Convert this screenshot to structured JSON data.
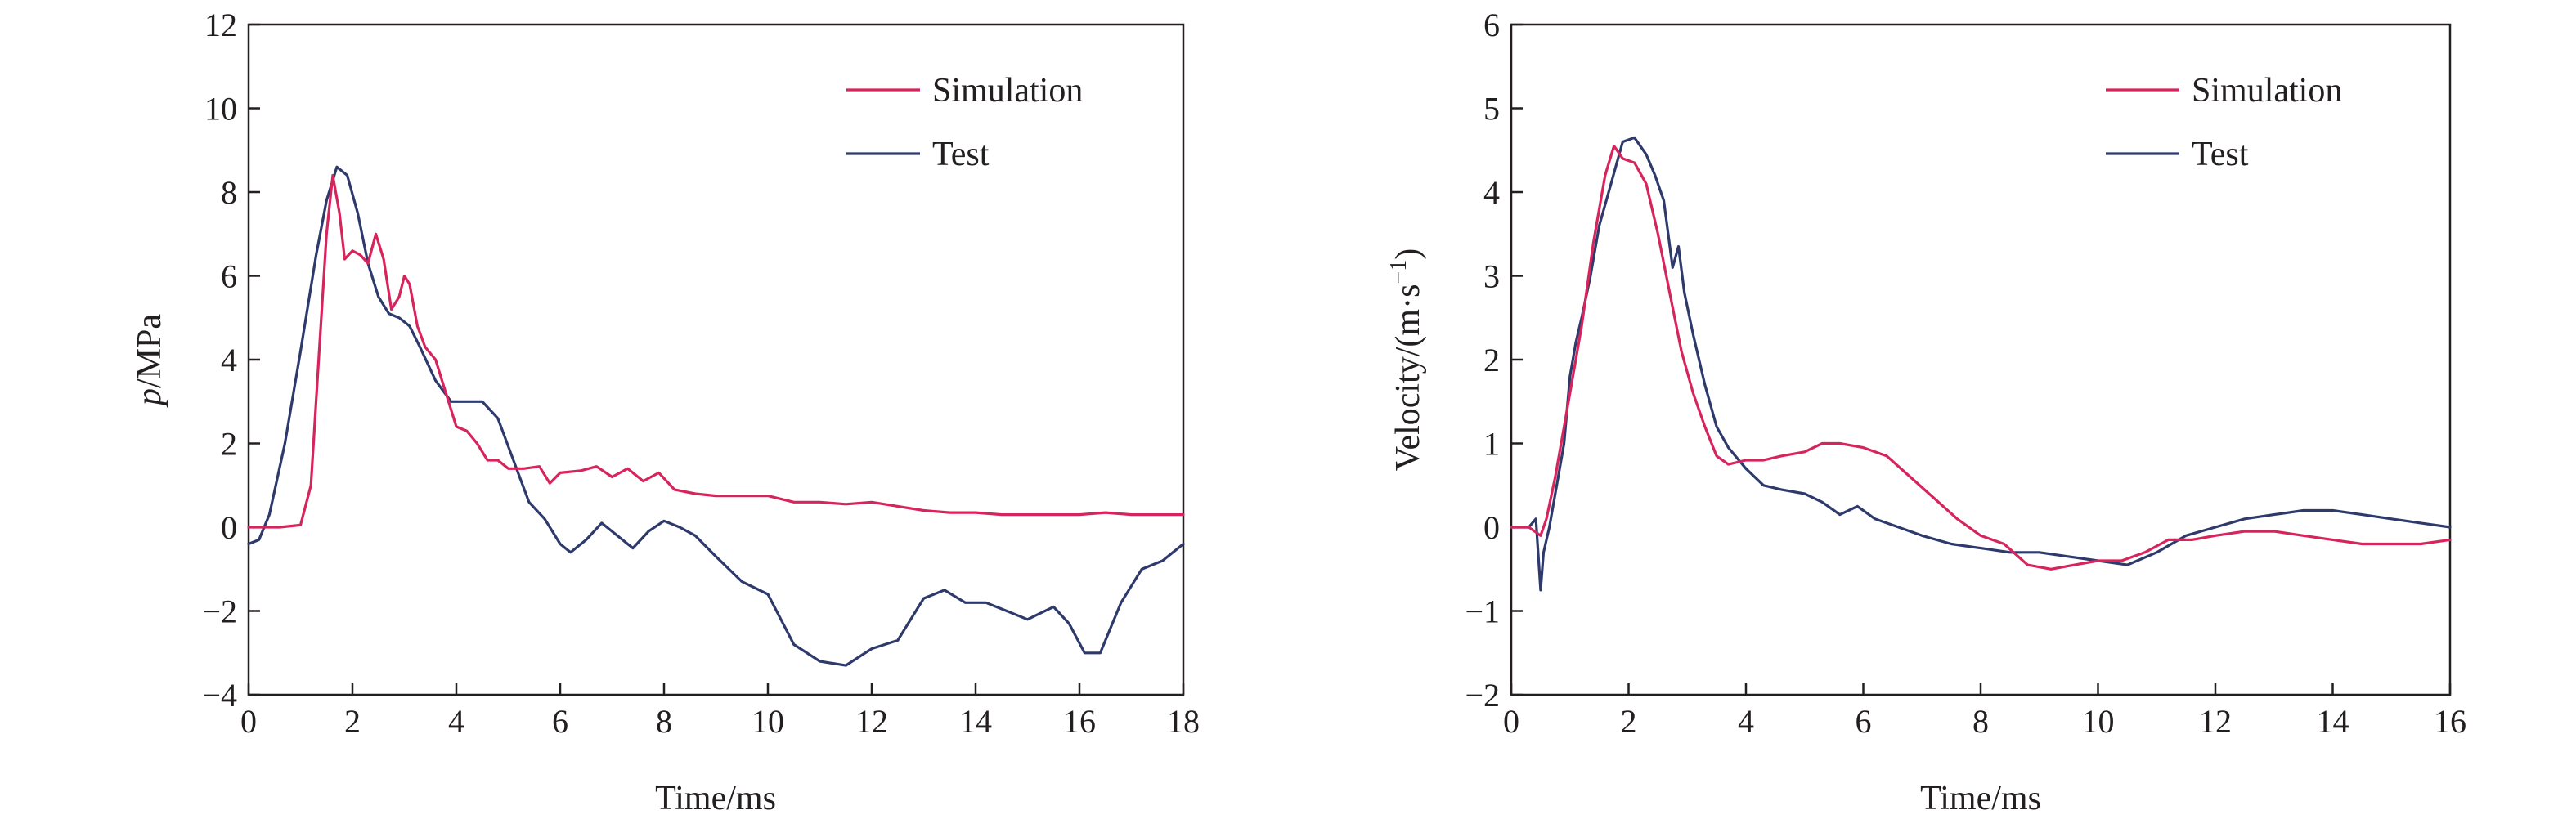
{
  "chart_data": [
    {
      "type": "line",
      "xlabel": "Time/ms",
      "ylabel_italic": "p",
      "ylabel_rest": "/MPa",
      "xlim": [
        0,
        18
      ],
      "ylim": [
        -4,
        12
      ],
      "xticks": [
        0,
        2,
        4,
        6,
        8,
        10,
        12,
        14,
        16,
        18
      ],
      "yticks": [
        -4,
        -2,
        0,
        2,
        4,
        6,
        8,
        10,
        12
      ],
      "xtick_labels": [
        "0",
        "2",
        "4",
        "6",
        "8",
        "10",
        "12",
        "14",
        "16",
        "18"
      ],
      "ytick_labels": [
        "−4",
        "−2",
        "0",
        "2",
        "4",
        "6",
        "8",
        "10",
        "12"
      ],
      "legend_position": "top-right",
      "series": [
        {
          "name": "Simulation",
          "color": "#d6245c",
          "points": [
            [
              0,
              0
            ],
            [
              0.6,
              0
            ],
            [
              1.0,
              0.05
            ],
            [
              1.2,
              1.0
            ],
            [
              1.35,
              4.0
            ],
            [
              1.5,
              7.0
            ],
            [
              1.62,
              8.4
            ],
            [
              1.75,
              7.5
            ],
            [
              1.85,
              6.4
            ],
            [
              2.0,
              6.6
            ],
            [
              2.15,
              6.5
            ],
            [
              2.3,
              6.3
            ],
            [
              2.45,
              7.0
            ],
            [
              2.6,
              6.4
            ],
            [
              2.75,
              5.2
            ],
            [
              2.9,
              5.5
            ],
            [
              3.0,
              6.0
            ],
            [
              3.1,
              5.8
            ],
            [
              3.25,
              4.8
            ],
            [
              3.4,
              4.3
            ],
            [
              3.6,
              4.0
            ],
            [
              3.8,
              3.2
            ],
            [
              4.0,
              2.4
            ],
            [
              4.2,
              2.3
            ],
            [
              4.4,
              2.0
            ],
            [
              4.6,
              1.6
            ],
            [
              4.8,
              1.6
            ],
            [
              5.0,
              1.4
            ],
            [
              5.3,
              1.4
            ],
            [
              5.6,
              1.45
            ],
            [
              5.8,
              1.05
            ],
            [
              6.0,
              1.3
            ],
            [
              6.4,
              1.35
            ],
            [
              6.7,
              1.45
            ],
            [
              7.0,
              1.2
            ],
            [
              7.3,
              1.4
            ],
            [
              7.6,
              1.1
            ],
            [
              7.9,
              1.3
            ],
            [
              8.2,
              0.9
            ],
            [
              8.6,
              0.8
            ],
            [
              9.0,
              0.75
            ],
            [
              9.5,
              0.75
            ],
            [
              10.0,
              0.75
            ],
            [
              10.5,
              0.6
            ],
            [
              11.0,
              0.6
            ],
            [
              11.5,
              0.55
            ],
            [
              12.0,
              0.6
            ],
            [
              12.5,
              0.5
            ],
            [
              13.0,
              0.4
            ],
            [
              13.5,
              0.35
            ],
            [
              14.0,
              0.35
            ],
            [
              14.5,
              0.3
            ],
            [
              15.0,
              0.3
            ],
            [
              15.5,
              0.3
            ],
            [
              16.0,
              0.3
            ],
            [
              16.5,
              0.35
            ],
            [
              17.0,
              0.3
            ],
            [
              17.5,
              0.3
            ],
            [
              18.0,
              0.3
            ]
          ]
        },
        {
          "name": "Test",
          "color": "#2e3a6b",
          "points": [
            [
              0,
              -0.4
            ],
            [
              0.2,
              -0.3
            ],
            [
              0.4,
              0.3
            ],
            [
              0.7,
              2.0
            ],
            [
              1.0,
              4.2
            ],
            [
              1.3,
              6.5
            ],
            [
              1.5,
              7.8
            ],
            [
              1.7,
              8.6
            ],
            [
              1.9,
              8.4
            ],
            [
              2.1,
              7.5
            ],
            [
              2.3,
              6.3
            ],
            [
              2.5,
              5.5
            ],
            [
              2.7,
              5.1
            ],
            [
              2.9,
              5.0
            ],
            [
              3.1,
              4.8
            ],
            [
              3.3,
              4.3
            ],
            [
              3.6,
              3.5
            ],
            [
              3.9,
              3.0
            ],
            [
              4.2,
              3.0
            ],
            [
              4.5,
              3.0
            ],
            [
              4.8,
              2.6
            ],
            [
              5.1,
              1.6
            ],
            [
              5.4,
              0.6
            ],
            [
              5.7,
              0.2
            ],
            [
              6.0,
              -0.4
            ],
            [
              6.2,
              -0.6
            ],
            [
              6.5,
              -0.3
            ],
            [
              6.8,
              0.1
            ],
            [
              7.1,
              -0.2
            ],
            [
              7.4,
              -0.5
            ],
            [
              7.7,
              -0.1
            ],
            [
              8.0,
              0.15
            ],
            [
              8.3,
              0.0
            ],
            [
              8.6,
              -0.2
            ],
            [
              9.0,
              -0.7
            ],
            [
              9.5,
              -1.3
            ],
            [
              10.0,
              -1.6
            ],
            [
              10.5,
              -2.8
            ],
            [
              11.0,
              -3.2
            ],
            [
              11.5,
              -3.3
            ],
            [
              12.0,
              -2.9
            ],
            [
              12.5,
              -2.7
            ],
            [
              13.0,
              -1.7
            ],
            [
              13.4,
              -1.5
            ],
            [
              13.8,
              -1.8
            ],
            [
              14.2,
              -1.8
            ],
            [
              14.6,
              -2.0
            ],
            [
              15.0,
              -2.2
            ],
            [
              15.5,
              -1.9
            ],
            [
              15.8,
              -2.3
            ],
            [
              16.1,
              -3.0
            ],
            [
              16.4,
              -3.0
            ],
            [
              16.8,
              -1.8
            ],
            [
              17.2,
              -1.0
            ],
            [
              17.6,
              -0.8
            ],
            [
              18.0,
              -0.4
            ]
          ]
        }
      ]
    },
    {
      "type": "line",
      "xlabel": "Time/ms",
      "ylabel_main": "Velocity/(m·s",
      "ylabel_sup": "−1",
      "ylabel_close": ")",
      "xlim": [
        0,
        16
      ],
      "ylim": [
        -2,
        6
      ],
      "xticks": [
        0,
        2,
        4,
        6,
        8,
        10,
        12,
        14,
        16
      ],
      "yticks": [
        -2,
        -1,
        0,
        1,
        2,
        3,
        4,
        5,
        6
      ],
      "xtick_labels": [
        "0",
        "2",
        "4",
        "6",
        "8",
        "10",
        "12",
        "14",
        "16"
      ],
      "ytick_labels": [
        "−2",
        "−1",
        "0",
        "1",
        "2",
        "3",
        "4",
        "5",
        "6"
      ],
      "legend_position": "top-right",
      "series": [
        {
          "name": "Simulation",
          "color": "#d6245c",
          "points": [
            [
              0,
              0
            ],
            [
              0.3,
              0
            ],
            [
              0.5,
              -0.1
            ],
            [
              0.6,
              0.1
            ],
            [
              0.75,
              0.6
            ],
            [
              0.9,
              1.2
            ],
            [
              1.0,
              1.6
            ],
            [
              1.2,
              2.4
            ],
            [
              1.4,
              3.4
            ],
            [
              1.6,
              4.2
            ],
            [
              1.75,
              4.55
            ],
            [
              1.9,
              4.4
            ],
            [
              2.1,
              4.35
            ],
            [
              2.3,
              4.1
            ],
            [
              2.5,
              3.5
            ],
            [
              2.7,
              2.8
            ],
            [
              2.9,
              2.1
            ],
            [
              3.1,
              1.6
            ],
            [
              3.3,
              1.2
            ],
            [
              3.5,
              0.85
            ],
            [
              3.7,
              0.75
            ],
            [
              4.0,
              0.8
            ],
            [
              4.3,
              0.8
            ],
            [
              4.6,
              0.85
            ],
            [
              5.0,
              0.9
            ],
            [
              5.3,
              1.0
            ],
            [
              5.6,
              1.0
            ],
            [
              6.0,
              0.95
            ],
            [
              6.4,
              0.85
            ],
            [
              6.8,
              0.6
            ],
            [
              7.2,
              0.35
            ],
            [
              7.6,
              0.1
            ],
            [
              8.0,
              -0.1
            ],
            [
              8.4,
              -0.2
            ],
            [
              8.8,
              -0.45
            ],
            [
              9.2,
              -0.5
            ],
            [
              9.6,
              -0.45
            ],
            [
              10.0,
              -0.4
            ],
            [
              10.4,
              -0.4
            ],
            [
              10.8,
              -0.3
            ],
            [
              11.2,
              -0.15
            ],
            [
              11.6,
              -0.15
            ],
            [
              12.0,
              -0.1
            ],
            [
              12.5,
              -0.05
            ],
            [
              13.0,
              -0.05
            ],
            [
              13.5,
              -0.1
            ],
            [
              14.0,
              -0.15
            ],
            [
              14.5,
              -0.2
            ],
            [
              15.0,
              -0.2
            ],
            [
              15.5,
              -0.2
            ],
            [
              16.0,
              -0.15
            ]
          ]
        },
        {
          "name": "Test",
          "color": "#2e3a6b",
          "points": [
            [
              0,
              0
            ],
            [
              0.3,
              0
            ],
            [
              0.42,
              0.1
            ],
            [
              0.5,
              -0.75
            ],
            [
              0.55,
              -0.3
            ],
            [
              0.65,
              0.0
            ],
            [
              0.8,
              0.6
            ],
            [
              0.9,
              1.0
            ],
            [
              1.0,
              1.8
            ],
            [
              1.1,
              2.2
            ],
            [
              1.2,
              2.5
            ],
            [
              1.35,
              3.0
            ],
            [
              1.5,
              3.6
            ],
            [
              1.7,
              4.1
            ],
            [
              1.9,
              4.6
            ],
            [
              2.1,
              4.65
            ],
            [
              2.3,
              4.45
            ],
            [
              2.45,
              4.2
            ],
            [
              2.6,
              3.9
            ],
            [
              2.75,
              3.1
            ],
            [
              2.85,
              3.35
            ],
            [
              2.95,
              2.8
            ],
            [
              3.1,
              2.3
            ],
            [
              3.3,
              1.7
            ],
            [
              3.5,
              1.2
            ],
            [
              3.7,
              0.95
            ],
            [
              4.0,
              0.7
            ],
            [
              4.3,
              0.5
            ],
            [
              4.6,
              0.45
            ],
            [
              5.0,
              0.4
            ],
            [
              5.3,
              0.3
            ],
            [
              5.6,
              0.15
            ],
            [
              5.9,
              0.25
            ],
            [
              6.2,
              0.1
            ],
            [
              6.6,
              0.0
            ],
            [
              7.0,
              -0.1
            ],
            [
              7.5,
              -0.2
            ],
            [
              8.0,
              -0.25
            ],
            [
              8.5,
              -0.3
            ],
            [
              9.0,
              -0.3
            ],
            [
              9.5,
              -0.35
            ],
            [
              10.0,
              -0.4
            ],
            [
              10.5,
              -0.45
            ],
            [
              11.0,
              -0.3
            ],
            [
              11.5,
              -0.1
            ],
            [
              12.0,
              0.0
            ],
            [
              12.5,
              0.1
            ],
            [
              13.0,
              0.15
            ],
            [
              13.5,
              0.2
            ],
            [
              14.0,
              0.2
            ],
            [
              14.5,
              0.15
            ],
            [
              15.0,
              0.1
            ],
            [
              15.5,
              0.05
            ],
            [
              16.0,
              0.0
            ]
          ]
        }
      ]
    }
  ]
}
